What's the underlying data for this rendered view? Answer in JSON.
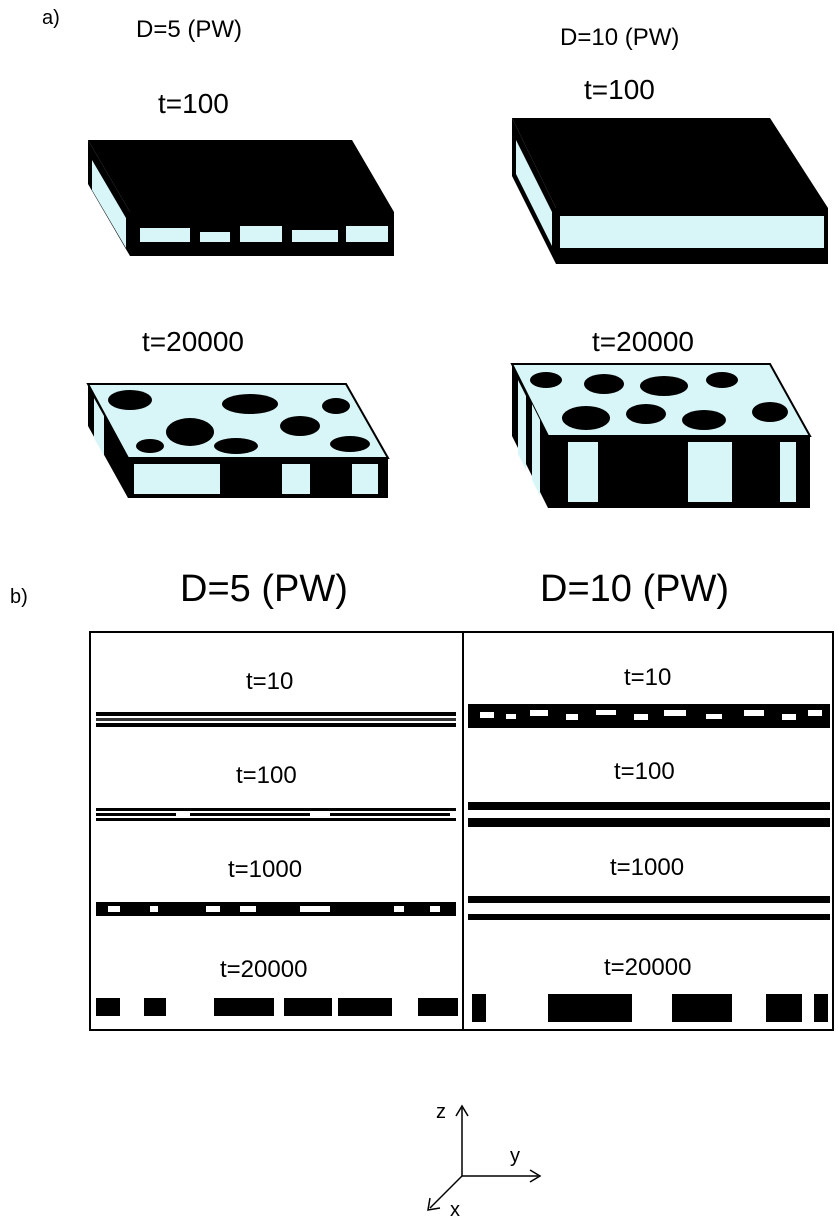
{
  "panel_a": {
    "label": "a)",
    "columns": [
      {
        "header": "D=5 (PW)",
        "snapshots": [
          {
            "time": "t=100"
          },
          {
            "time": "t=20000"
          }
        ]
      },
      {
        "header": "D=10 (PW)",
        "snapshots": [
          {
            "time": "t=100"
          },
          {
            "time": "t=20000"
          }
        ]
      }
    ]
  },
  "panel_b": {
    "label": "b)",
    "columns": [
      {
        "header": "D=5 (PW)",
        "rows": [
          "t=10",
          "t=100",
          "t=1000",
          "t=20000"
        ]
      },
      {
        "header": "D=10 (PW)",
        "rows": [
          "t=10",
          "t=100",
          "t=1000",
          "t=20000"
        ]
      }
    ]
  },
  "axes": {
    "z": "z",
    "y": "y",
    "x": "x"
  },
  "colors": {
    "phase_a": "#000000",
    "phase_b": "#d8f6f8"
  }
}
